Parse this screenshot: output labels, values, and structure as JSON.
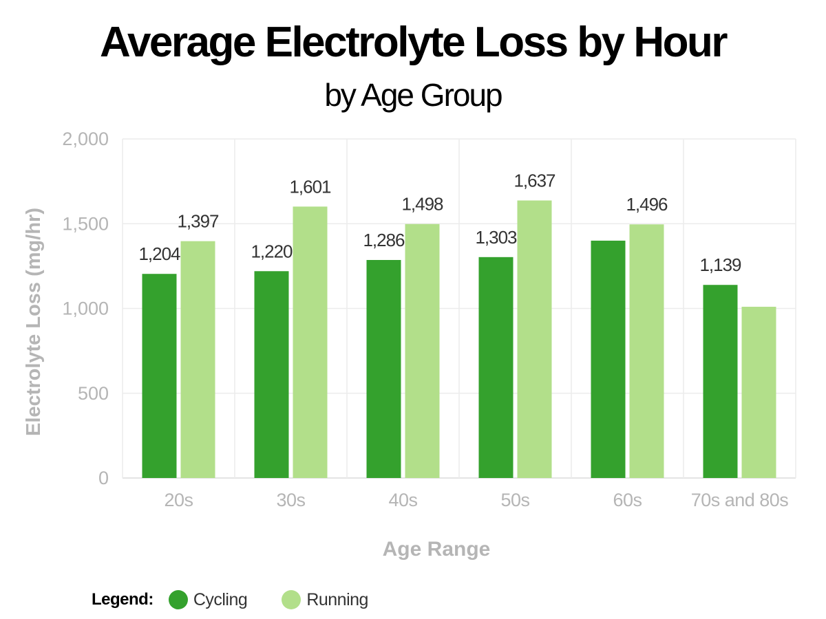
{
  "chart_data": {
    "type": "bar",
    "title": "Average Electrolyte Loss by Hour",
    "subtitle": "by Age Group",
    "xlabel": "Age Range",
    "ylabel": "Electrolyte Loss (mg/hr)",
    "ylim": [
      0,
      2000
    ],
    "yticks": [
      0,
      500,
      1000,
      1500,
      2000
    ],
    "ytick_labels": [
      "0",
      "500",
      "1,000",
      "1,500",
      "2,000"
    ],
    "grid": true,
    "categories": [
      "20s",
      "30s",
      "40s",
      "50s",
      "60s",
      "70s and 80s"
    ],
    "series": [
      {
        "name": "Cycling",
        "color": "#34a12d",
        "values": [
          1204,
          1220,
          1286,
          1303,
          1400,
          1139
        ],
        "labels": [
          "1,204",
          "1,220",
          "1,286",
          "1,303",
          "",
          "1,139"
        ]
      },
      {
        "name": "Running",
        "color": "#b2df8a",
        "values": [
          1397,
          1601,
          1498,
          1637,
          1496,
          1010
        ],
        "labels": [
          "1,397",
          "1,601",
          "1,498",
          "1,637",
          "1,496",
          ""
        ]
      }
    ],
    "legend": {
      "label": "Legend:",
      "placement": "bottom-left"
    }
  }
}
